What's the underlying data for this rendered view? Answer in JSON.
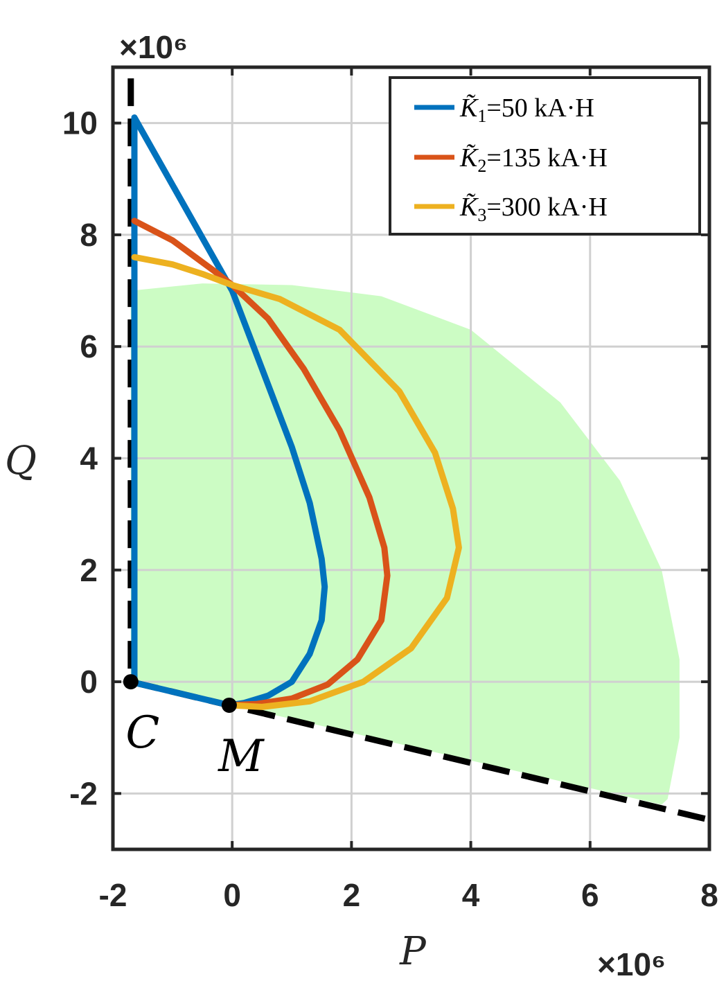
{
  "chart_data": {
    "type": "line",
    "xlabel": "P",
    "ylabel": "Q",
    "x_exponent_label": "×10⁶",
    "y_exponent_label": "×10⁶",
    "xlim": [
      -2,
      8
    ],
    "ylim": [
      -3,
      11
    ],
    "x_ticks": [
      -2,
      0,
      2,
      4,
      6,
      8
    ],
    "y_ticks": [
      -2,
      0,
      2,
      4,
      6,
      8,
      10
    ],
    "x_tick_labels": [
      "-2",
      "0",
      "2",
      "4",
      "6",
      "8"
    ],
    "y_tick_labels": [
      "-2",
      "0",
      "2",
      "4",
      "6",
      "8",
      "10"
    ],
    "grid": true,
    "legend_position": "top-right",
    "feasible_region": {
      "color": "#ccfcc4",
      "boundary": [
        [
          -1.7,
          7.0
        ],
        [
          -0.5,
          7.13
        ],
        [
          1.0,
          7.1
        ],
        [
          2.5,
          6.9
        ],
        [
          4.0,
          6.3
        ],
        [
          5.5,
          5.0
        ],
        [
          6.5,
          3.6
        ],
        [
          7.2,
          2.0
        ],
        [
          7.5,
          0.4
        ],
        [
          7.5,
          -1.0
        ],
        [
          7.3,
          -2.1
        ],
        [
          7.2,
          -2.2
        ],
        [
          0.0,
          -0.42
        ],
        [
          -1.7,
          0.0
        ]
      ]
    },
    "boundary_lines": [
      {
        "style": "dashed",
        "color": "#000000",
        "points": [
          [
            -1.7,
            10.8
          ],
          [
            -1.7,
            0.0
          ]
        ]
      },
      {
        "style": "dashed",
        "color": "#000000",
        "points": [
          [
            -1.7,
            0.0
          ],
          [
            8.0,
            -2.47
          ]
        ]
      }
    ],
    "points": [
      {
        "label": "C",
        "x": -1.7,
        "y": 0.0
      },
      {
        "label": "M",
        "x": -0.05,
        "y": -0.42
      }
    ],
    "series": [
      {
        "name": "K̃₁=50 kA·H",
        "legend_main": "K̃",
        "legend_sub": "1",
        "legend_rest": "=50  kA·H",
        "color": "#0072bd",
        "x": [
          -1.64,
          -1.64,
          -1.64,
          0.0,
          0.5,
          1.0,
          1.3,
          1.5,
          1.55,
          1.5,
          1.3,
          1.0,
          0.6,
          0.2,
          -0.05,
          -1.7
        ],
        "y": [
          0.0,
          5.0,
          10.1,
          7.0,
          5.6,
          4.2,
          3.2,
          2.2,
          1.7,
          1.1,
          0.5,
          0.0,
          -0.25,
          -0.38,
          -0.42,
          0.0
        ]
      },
      {
        "name": "K̃₂=135 kA·H",
        "legend_main": "K̃",
        "legend_sub": "2",
        "legend_rest": "=135  kA·H",
        "color": "#d95319",
        "x": [
          -1.64,
          -1.0,
          -0.3,
          0.0,
          0.6,
          1.2,
          1.8,
          2.3,
          2.55,
          2.6,
          2.5,
          2.1,
          1.6,
          1.0,
          0.4,
          -0.05
        ],
        "y": [
          8.25,
          7.9,
          7.35,
          7.1,
          6.5,
          5.6,
          4.5,
          3.3,
          2.4,
          1.9,
          1.1,
          0.4,
          -0.05,
          -0.3,
          -0.4,
          -0.42
        ]
      },
      {
        "name": "K̃₃=300 kA·H",
        "legend_main": "K̃",
        "legend_sub": "3",
        "legend_rest": "=300  kA·H",
        "color": "#edb120",
        "x": [
          -1.64,
          -1.0,
          -0.5,
          0.0,
          0.8,
          1.8,
          2.8,
          3.4,
          3.7,
          3.8,
          3.6,
          3.0,
          2.2,
          1.3,
          0.5,
          -0.05
        ],
        "y": [
          7.6,
          7.47,
          7.3,
          7.1,
          6.85,
          6.3,
          5.2,
          4.1,
          3.1,
          2.4,
          1.5,
          0.6,
          0.0,
          -0.35,
          -0.45,
          -0.42
        ]
      }
    ]
  }
}
